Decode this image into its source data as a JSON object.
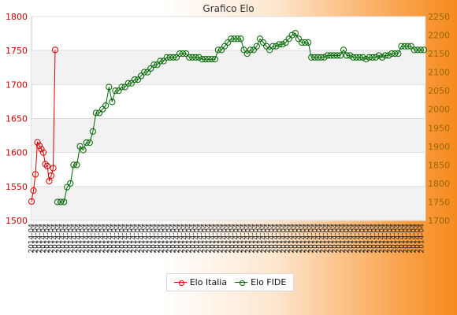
{
  "chart_data": {
    "type": "line",
    "title": "Grafico Elo",
    "left_axis": {
      "min": 1500,
      "max": 1800,
      "step": 50,
      "ticks": [
        "1800",
        "1750",
        "1700",
        "1650",
        "1600",
        "1550",
        "1500"
      ]
    },
    "right_axis": {
      "min": 1700,
      "max": 2250,
      "step": 50,
      "ticks": [
        "2250",
        "2200",
        "2150",
        "2100",
        "2050",
        "2000",
        "1950",
        "1900",
        "1850",
        "1800",
        "1750",
        "1700"
      ]
    },
    "grid": true,
    "legend_position": "bottom",
    "x_tick_label": "2014-04",
    "x_tick_count": 100,
    "series": [
      {
        "name": "Elo Italia",
        "axis": "left",
        "color": "#dd0000",
        "values": [
          1528,
          1544,
          1568,
          1615,
          1610,
          1605,
          1600,
          1583,
          1580,
          1558,
          1566,
          1577,
          1751
        ]
      },
      {
        "name": "Elo FIDE",
        "axis": "right",
        "color": "#006600",
        "values": [
          1750,
          1750,
          1750,
          1790,
          1800,
          1850,
          1850,
          1900,
          1890,
          1910,
          1910,
          1940,
          1990,
          1990,
          2000,
          2010,
          2060,
          2020,
          2050,
          2050,
          2060,
          2060,
          2070,
          2070,
          2080,
          2080,
          2090,
          2100,
          2100,
          2110,
          2120,
          2120,
          2130,
          2130,
          2140,
          2140,
          2140,
          2140,
          2150,
          2150,
          2150,
          2140,
          2140,
          2140,
          2140,
          2135,
          2135,
          2135,
          2135,
          2135,
          2160,
          2160,
          2170,
          2180,
          2190,
          2190,
          2190,
          2190,
          2160,
          2150,
          2160,
          2160,
          2170,
          2190,
          2180,
          2170,
          2160,
          2170,
          2170,
          2175,
          2175,
          2180,
          2190,
          2200,
          2205,
          2190,
          2180,
          2180,
          2180,
          2140,
          2140,
          2140,
          2140,
          2140,
          2145,
          2145,
          2145,
          2145,
          2145,
          2160,
          2145,
          2145,
          2140,
          2140,
          2140,
          2140,
          2135,
          2140,
          2140,
          2140,
          2145,
          2140,
          2145,
          2145,
          2150,
          2150,
          2150,
          2170,
          2170,
          2170,
          2170,
          2160,
          2160,
          2160,
          2160
        ]
      }
    ]
  }
}
